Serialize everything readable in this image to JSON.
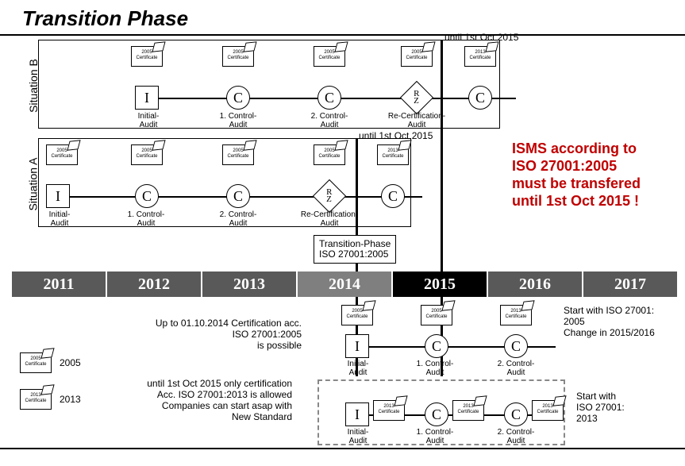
{
  "title": "Transition Phase",
  "labels": {
    "situationA": "Situation A",
    "situationB": "Situation B"
  },
  "years": [
    "2011",
    "2012",
    "2013",
    "2014",
    "2015",
    "2016",
    "2017"
  ],
  "yearColors": [
    "#595959",
    "#595959",
    "#595959",
    "#7f7f7f",
    "#000000",
    "#595959",
    "#595959"
  ],
  "audits": {
    "initial": "Initial-\nAudit",
    "control1": "1. Control-\nAudit",
    "control2": "2. Control-\nAudit",
    "recert": "Re-Certification-\nAudit"
  },
  "cert2005": "2005\nCertificate",
  "cert2013": "2013\nCertificate",
  "untilOct2015": "until 1st Oct 2015",
  "transitionPhase": "Transition-Phase\nISO 27001:2005",
  "bigRed": "ISMS according to\nISO 27001:2005\nmust be transfered\nuntil 1st Oct 2015 !",
  "note1": "Up to 01.10.2014 Certification acc.\nISO 27001:2005\nis possible",
  "note2": "until 1st Oct 2015 only certification\nAcc. ISO 27001:2013 is allowed\nCompanies can start asap with\nNew Standard",
  "startNote1": "Start with ISO 27001:\n2005\nChange in 2015/2016",
  "startNote2": "Start with\nISO 27001:\n2013",
  "legend2005": "2005",
  "legend2013": "2013",
  "nodes": {
    "I": "I",
    "C": "C",
    "RZ": "R\nZ"
  }
}
